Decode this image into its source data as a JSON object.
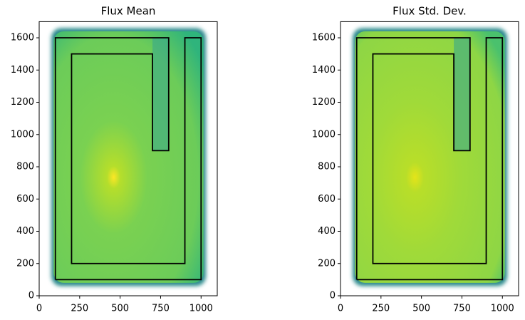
{
  "chart_data": [
    {
      "type": "heatmap",
      "title": "Flux Mean",
      "colormap": "viridis",
      "xlim": [
        0,
        1100
      ],
      "ylim": [
        0,
        1700
      ],
      "xticks": [
        0,
        250,
        500,
        750,
        1000
      ],
      "yticks": [
        0,
        200,
        400,
        600,
        800,
        1000,
        1200,
        1400,
        1600
      ],
      "outline": {
        "color": "#000000",
        "x": [
          100,
          100,
          800,
          800,
          700,
          700,
          200,
          200,
          900,
          900,
          1000,
          1000,
          100
        ],
        "y": [
          100,
          1600,
          1600,
          900,
          900,
          1500,
          1500,
          200,
          200,
          1600,
          1600,
          100,
          100
        ]
      }
    },
    {
      "type": "heatmap",
      "title": "Flux Std. Dev.",
      "colormap": "viridis",
      "xlim": [
        0,
        1100
      ],
      "ylim": [
        0,
        1700
      ],
      "xticks": [
        0,
        250,
        500,
        750,
        1000
      ],
      "yticks": [
        0,
        200,
        400,
        600,
        800,
        1000,
        1200,
        1400,
        1600
      ],
      "outline": {
        "color": "#000000",
        "x": [
          100,
          100,
          800,
          800,
          700,
          700,
          200,
          200,
          900,
          900,
          1000,
          1000,
          100
        ],
        "y": [
          100,
          1600,
          1600,
          900,
          900,
          1500,
          1500,
          200,
          200,
          1600,
          1600,
          100,
          100
        ]
      }
    }
  ]
}
